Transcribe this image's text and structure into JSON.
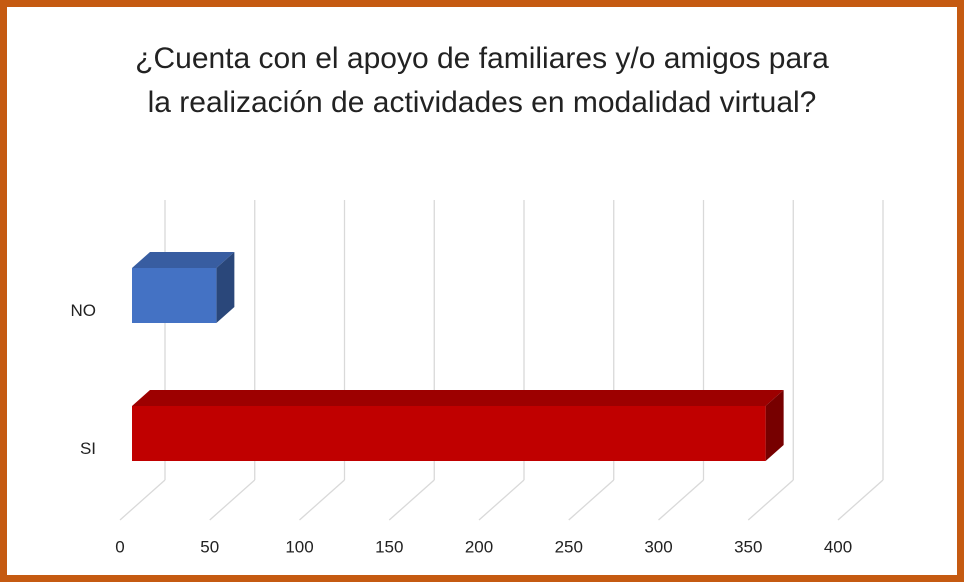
{
  "chart_data": {
    "type": "bar3d_horizontal",
    "title": "¿Cuenta con el apoyo de familiares y/o amigos para la realización de actividades en modalidad virtual?",
    "categories": [
      "NO",
      "SI"
    ],
    "values": [
      47,
      353
    ],
    "colors": [
      "#4472c4",
      "#c00000"
    ],
    "xlim": [
      0,
      400
    ],
    "xticks": [
      0,
      50,
      100,
      150,
      200,
      250,
      300,
      350,
      400
    ],
    "grid": true
  }
}
